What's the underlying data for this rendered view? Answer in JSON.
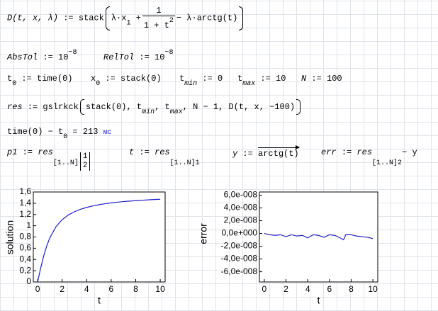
{
  "worksheet": {
    "expressions": [
      [
        "D(t, x, λ)",
        ":=",
        "stack",
        "λ·x",
        "1",
        "+",
        "1",
        "1 + t",
        "2",
        "− λ·arctg(t)"
      ],
      [
        "AbsTol",
        ":=",
        "10",
        "−8"
      ],
      [
        "RelTol",
        ":=",
        "10",
        "−8"
      ],
      [
        "t",
        "0",
        ":=",
        "time(0)"
      ],
      [
        "x",
        "0",
        ":=",
        "stack(0)"
      ],
      [
        "t",
        "min",
        ":=",
        "0"
      ],
      [
        "t",
        "max",
        ":=",
        "10"
      ],
      [
        "N",
        ":=",
        "100"
      ],
      [
        "res",
        ":=",
        "gslrkck",
        "stack(0), t",
        "min",
        ", t",
        "max",
        ", N − 1, D(t, x, −100)"
      ],
      [
        "time(0) − t",
        "0",
        " = ",
        "213",
        "мс"
      ],
      [
        "p1",
        ":=",
        "res",
        "[1..N]",
        "1",
        "2"
      ],
      [
        "t",
        ":=",
        "res",
        "[1..N]",
        "1"
      ],
      [
        "y",
        ":=",
        "arctg(t)"
      ],
      [
        "err",
        ":=",
        "res",
        "[1..N]",
        "2",
        "− y"
      ]
    ]
  },
  "chart_data": [
    {
      "type": "line",
      "x_label": "t",
      "y_label": "solution",
      "color": "#1f1fcc",
      "x": [
        0,
        0.25,
        0.5,
        0.75,
        1,
        1.5,
        2,
        2.5,
        3,
        3.5,
        4,
        4.5,
        5,
        5.5,
        6,
        6.5,
        7,
        7.5,
        8,
        8.5,
        9,
        9.5,
        10
      ],
      "values": [
        0,
        0.245,
        0.464,
        0.644,
        0.785,
        0.983,
        1.107,
        1.19,
        1.249,
        1.292,
        1.326,
        1.352,
        1.373,
        1.391,
        1.406,
        1.418,
        1.429,
        1.438,
        1.446,
        1.453,
        1.46,
        1.466,
        1.471
      ],
      "xlim": [
        -0.35,
        10.4
      ],
      "xticks": [
        0,
        2,
        4,
        6,
        8,
        10
      ],
      "ylim": [
        0,
        1.6
      ],
      "yticks": [
        0,
        {
          "value": 0.2,
          "label": "0,2"
        },
        {
          "value": 0.4,
          "label": "0,4"
        },
        {
          "value": 0.6,
          "label": "0,6"
        },
        {
          "value": 0.8,
          "label": "0,8"
        },
        1,
        {
          "value": 1.2,
          "label": "1,2"
        },
        {
          "value": 1.4,
          "label": "1,4"
        },
        {
          "value": 1.6,
          "label": "1,6"
        }
      ]
    },
    {
      "type": "line",
      "x_label": "t",
      "y_label": "error",
      "color": "#1f1fcc",
      "x": [
        0,
        0.5,
        1,
        1.5,
        2,
        2.5,
        3,
        3.5,
        4,
        4.5,
        5,
        5.5,
        6,
        6.5,
        7,
        7.3,
        7.5,
        8,
        8.5,
        9,
        9.5,
        10
      ],
      "values": [
        0,
        -2e-09,
        -3e-09,
        -2e-09,
        -5e-09,
        -2e-09,
        -4e-09,
        -3e-09,
        -7e-09,
        -2e-09,
        -3e-09,
        -6e-09,
        -2e-09,
        -3e-09,
        -7e-09,
        -1e-08,
        -2e-09,
        -2e-09,
        -4e-09,
        -5e-09,
        -6e-09,
        -8e-09
      ],
      "xlim": [
        -0.45,
        10.45
      ],
      "xticks": [
        0,
        2,
        4,
        6,
        8,
        10
      ],
      "ylim": [
        -7.6e-08,
        6.5e-08
      ],
      "yticks": [
        {
          "value": 6e-08,
          "label": "6,0e-008"
        },
        {
          "value": 4e-08,
          "label": "4,0e-008"
        },
        {
          "value": 2e-08,
          "label": "2,0e-008"
        },
        {
          "value": 0,
          "label": "0,0e+000"
        },
        {
          "value": -2e-08,
          "label": "-2,0e-008"
        },
        {
          "value": -4e-08,
          "label": "-4,0e-008"
        },
        {
          "value": -6e-08,
          "label": "-6,0e-008"
        }
      ]
    }
  ]
}
